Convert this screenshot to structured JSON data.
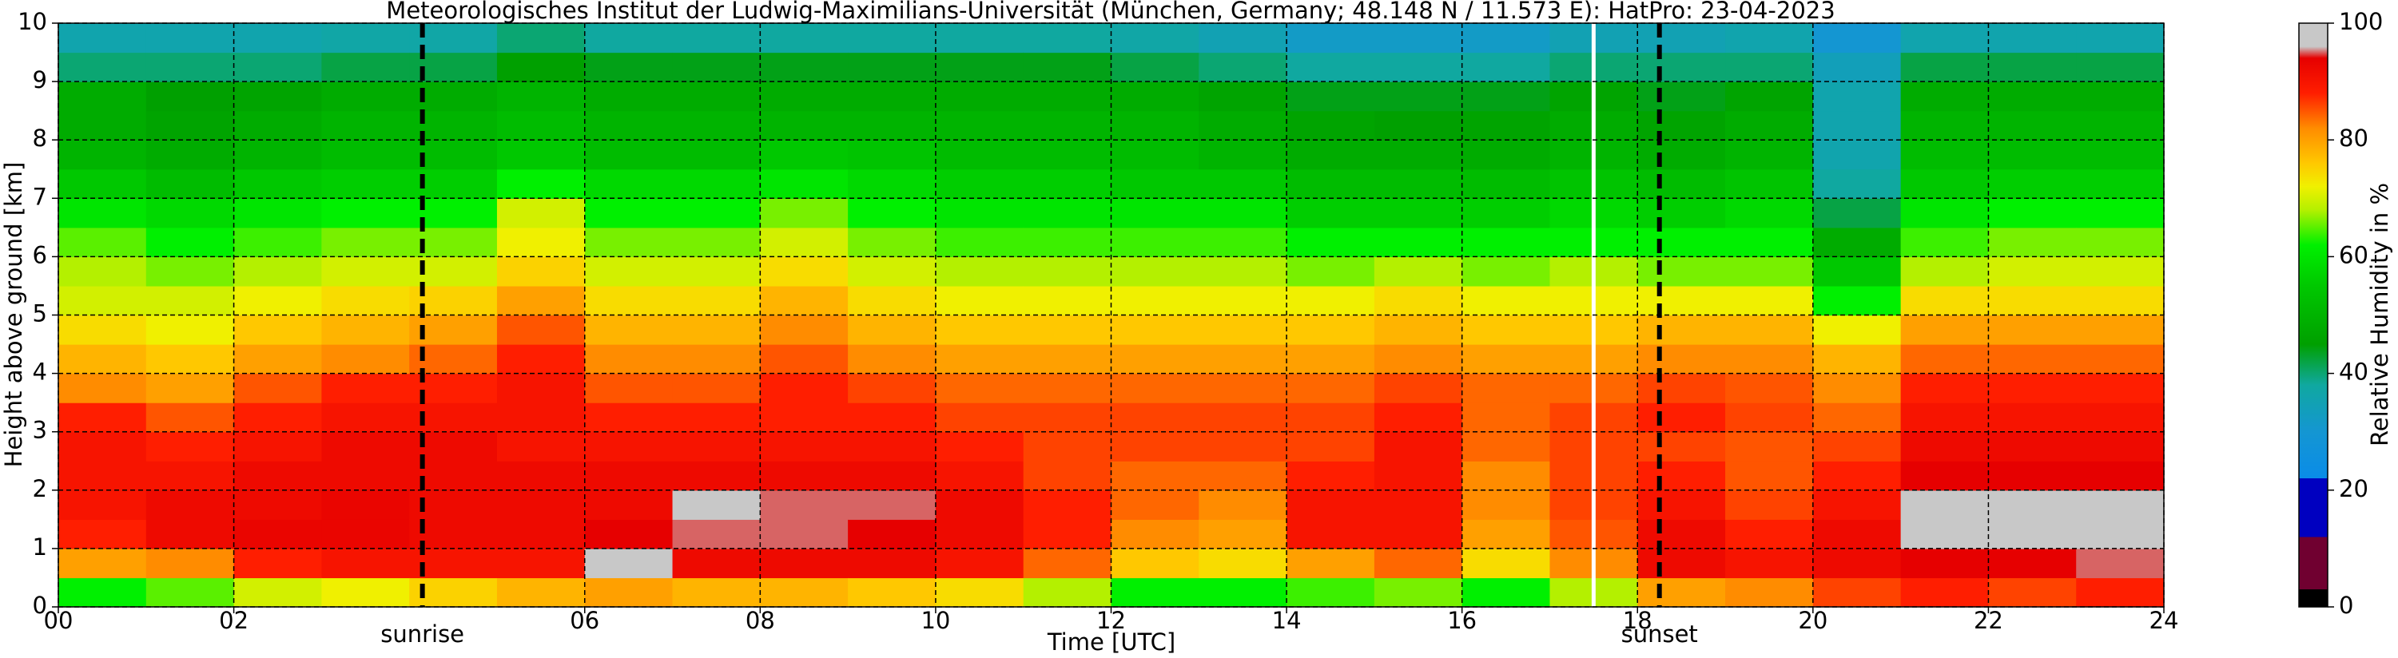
{
  "chart_data": {
    "type": "heatmap",
    "title": "Meteorologisches Institut der Ludwig-Maximilians-Universität (München, Germany; 48.148 N / 11.573 E):    HatPro: 23-04-2023",
    "xlabel": "Time [UTC]",
    "ylabel": "Height above ground [km]",
    "clabel": "Relative Humidity in %",
    "xlim": [
      0,
      24
    ],
    "ylim": [
      0,
      10
    ],
    "clim": [
      0,
      100
    ],
    "xticks": [
      {
        "value": 0,
        "label": "00"
      },
      {
        "value": 2,
        "label": "02"
      },
      {
        "value": 6,
        "label": "06"
      },
      {
        "value": 8,
        "label": "08"
      },
      10,
      12,
      14,
      16,
      18,
      20,
      22,
      24
    ],
    "yticks": [
      0,
      1,
      2,
      3,
      4,
      5,
      6,
      7,
      8,
      9,
      10
    ],
    "cticks": [
      0,
      20,
      40,
      60,
      80,
      100
    ],
    "grid": true,
    "vlines": [
      {
        "x": 4.15,
        "label": "sunrise"
      },
      {
        "x": 18.25,
        "label": "sunset"
      }
    ],
    "missing_x": 17.5,
    "colorscale": [
      [
        0,
        "#000000"
      ],
      [
        3,
        "#000000"
      ],
      [
        3,
        "#700030"
      ],
      [
        12,
        "#700030"
      ],
      [
        12,
        "#0000c0"
      ],
      [
        22,
        "#0000c0"
      ],
      [
        22,
        "#0a8ce8"
      ],
      [
        30,
        "#1496d2"
      ],
      [
        38,
        "#10a8a0"
      ],
      [
        45,
        "#00a000"
      ],
      [
        55,
        "#00c800"
      ],
      [
        62,
        "#00f000"
      ],
      [
        68,
        "#b4f000"
      ],
      [
        72,
        "#f0f000"
      ],
      [
        76,
        "#ffc800"
      ],
      [
        82,
        "#ff8c00"
      ],
      [
        88,
        "#ff1e00"
      ],
      [
        94,
        "#e60000"
      ],
      [
        96,
        "#c8c8c8"
      ],
      [
        100,
        "#c8c8c8"
      ]
    ],
    "x": [
      0.5,
      1.5,
      2.5,
      3.5,
      4.5,
      5.5,
      6.5,
      7.5,
      8.5,
      9.5,
      10.5,
      11.5,
      12.5,
      13.5,
      14.5,
      15.5,
      16.5,
      17.5,
      18.5,
      19.5,
      20.5,
      21.5,
      22.5,
      23.5
    ],
    "y": [
      0.25,
      0.75,
      1.25,
      1.75,
      2.25,
      2.75,
      3.25,
      3.75,
      4.25,
      4.75,
      5.25,
      5.75,
      6.25,
      6.75,
      7.25,
      7.75,
      8.25,
      8.75,
      9.25,
      9.75
    ],
    "values": [
      [
        62,
        80,
        88,
        90,
        90,
        90,
        88,
        82,
        78,
        74,
        70,
        68,
        65,
        60,
        55,
        50,
        48,
        48,
        40,
        36
      ],
      [
        65,
        82,
        92,
        92,
        90,
        88,
        85,
        80,
        76,
        72,
        70,
        66,
        62,
        58,
        52,
        48,
        46,
        45,
        40,
        36
      ],
      [
        70,
        88,
        93,
        92,
        92,
        90,
        88,
        85,
        80,
        76,
        72,
        68,
        64,
        60,
        55,
        50,
        48,
        46,
        40,
        36
      ],
      [
        72,
        90,
        93,
        93,
        92,
        92,
        90,
        88,
        82,
        78,
        74,
        70,
        66,
        62,
        56,
        52,
        50,
        48,
        42,
        37
      ],
      [
        75,
        90,
        92,
        92,
        92,
        92,
        90,
        88,
        84,
        80,
        75,
        70,
        66,
        62,
        56,
        52,
        50,
        48,
        42,
        37
      ],
      [
        78,
        90,
        92,
        92,
        92,
        90,
        90,
        90,
        88,
        85,
        80,
        75,
        72,
        70,
        62,
        55,
        52,
        50,
        45,
        40
      ],
      [
        80,
        96,
        94,
        92,
        92,
        90,
        88,
        85,
        82,
        78,
        74,
        70,
        66,
        62,
        58,
        52,
        50,
        48,
        44,
        38
      ],
      [
        78,
        92,
        95,
        96,
        92,
        90,
        88,
        85,
        82,
        78,
        74,
        70,
        66,
        62,
        58,
        52,
        50,
        48,
        44,
        38
      ],
      [
        78,
        92,
        95,
        95,
        92,
        90,
        88,
        88,
        85,
        82,
        78,
        74,
        70,
        66,
        60,
        55,
        50,
        48,
        44,
        38
      ],
      [
        76,
        92,
        94,
        95,
        92,
        90,
        88,
        86,
        82,
        78,
        74,
        70,
        66,
        62,
        58,
        54,
        50,
        48,
        44,
        38
      ],
      [
        74,
        90,
        92,
        92,
        90,
        88,
        86,
        84,
        80,
        76,
        72,
        68,
        64,
        60,
        56,
        52,
        50,
        48,
        44,
        38
      ],
      [
        68,
        84,
        88,
        88,
        86,
        86,
        86,
        84,
        80,
        76,
        72,
        68,
        64,
        60,
        56,
        52,
        50,
        48,
        44,
        38
      ],
      [
        62,
        76,
        82,
        84,
        84,
        86,
        86,
        84,
        80,
        76,
        72,
        68,
        64,
        60,
        55,
        52,
        50,
        48,
        42,
        37
      ],
      [
        62,
        74,
        80,
        82,
        84,
        86,
        86,
        84,
        80,
        76,
        72,
        68,
        64,
        60,
        55,
        50,
        48,
        46,
        40,
        35
      ],
      [
        64,
        80,
        90,
        90,
        88,
        86,
        86,
        84,
        80,
        76,
        72,
        66,
        62,
        56,
        52,
        48,
        46,
        44,
        38,
        32
      ],
      [
        66,
        84,
        90,
        90,
        90,
        90,
        88,
        86,
        82,
        78,
        74,
        68,
        62,
        56,
        52,
        48,
        45,
        44,
        38,
        32
      ],
      [
        62,
        74,
        80,
        82,
        82,
        84,
        84,
        84,
        80,
        76,
        72,
        66,
        62,
        56,
        52,
        48,
        46,
        44,
        38,
        32
      ],
      [
        68,
        82,
        85,
        86,
        86,
        86,
        86,
        84,
        80,
        76,
        72,
        68,
        62,
        58,
        54,
        50,
        48,
        46,
        40,
        35
      ],
      [
        80,
        92,
        92,
        90,
        88,
        86,
        88,
        86,
        82,
        78,
        72,
        66,
        62,
        56,
        52,
        48,
        46,
        44,
        40,
        35
      ],
      [
        82,
        90,
        88,
        86,
        85,
        85,
        86,
        85,
        82,
        78,
        72,
        66,
        62,
        58,
        54,
        50,
        48,
        46,
        40,
        36
      ],
      [
        86,
        92,
        92,
        90,
        88,
        86,
        84,
        82,
        78,
        72,
        62,
        55,
        48,
        42,
        38,
        36,
        36,
        36,
        34,
        30
      ],
      [
        88,
        94,
        96,
        96,
        94,
        92,
        90,
        88,
        84,
        80,
        74,
        68,
        64,
        60,
        55,
        52,
        50,
        48,
        42,
        36
      ],
      [
        86,
        94,
        96,
        96,
        94,
        92,
        90,
        88,
        84,
        80,
        74,
        70,
        66,
        62,
        56,
        52,
        50,
        48,
        42,
        36
      ],
      [
        88,
        95,
        96,
        96,
        94,
        92,
        90,
        88,
        84,
        80,
        74,
        70,
        66,
        62,
        56,
        52,
        50,
        48,
        42,
        36
      ]
    ]
  }
}
